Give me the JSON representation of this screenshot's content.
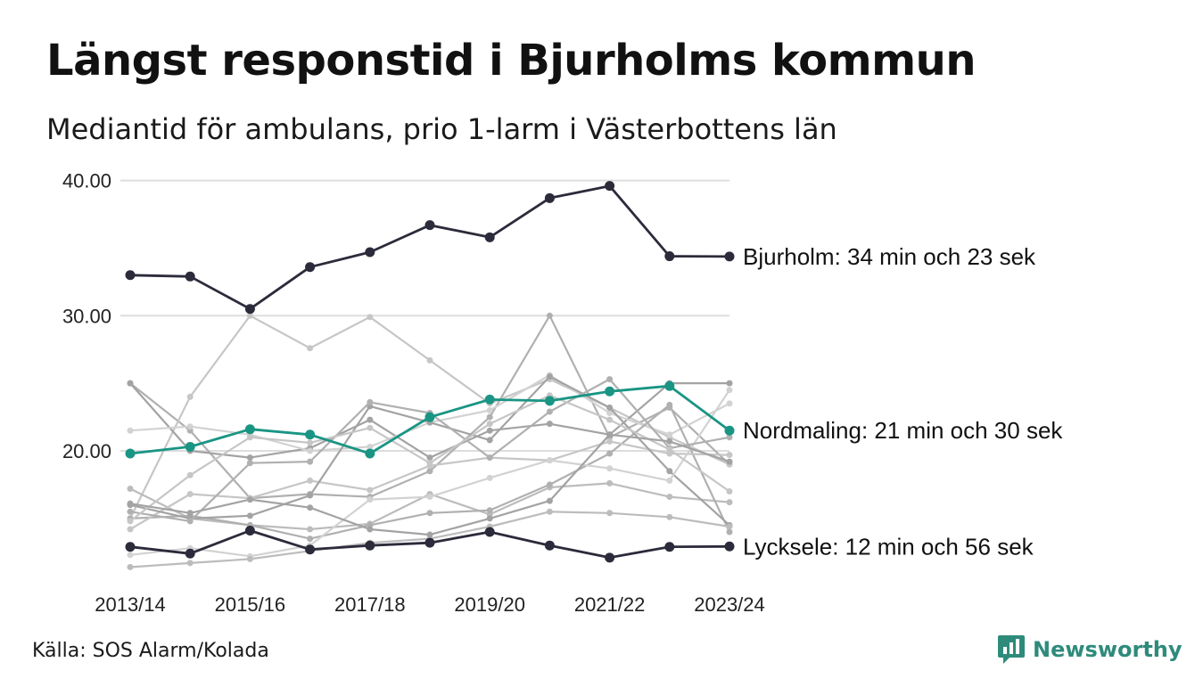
{
  "header": {
    "title": "Längst responstid i Bjurholms kommun",
    "subtitle": "Mediantid för ambulans, prio 1-larm i Västerbottens län"
  },
  "footer": {
    "source": "Källa: SOS Alarm/Kolada",
    "brand": "Newsworthy",
    "brand_icon": "newsworthy-logo-icon"
  },
  "colors": {
    "highlight_dark": "#2b2b3b",
    "highlight_teal": "#1a9584",
    "background_lines": [
      "#b0b0b0",
      "#c6c6c6",
      "#a3a3a3",
      "#d2d2d2",
      "#bcbcbc"
    ],
    "grid": "#dddddd",
    "brand": "#2e8b7c"
  },
  "chart_data": {
    "type": "line",
    "x": [
      "2013/14",
      "2014/15",
      "2015/16",
      "2016/17",
      "2017/18",
      "2018/19",
      "2019/20",
      "2020/21",
      "2021/22",
      "2022/23",
      "2023/24"
    ],
    "x_tick_labels": [
      "2013/14",
      "2015/16",
      "2017/18",
      "2019/20",
      "2021/22",
      "2023/24"
    ],
    "y_ticks": [
      20,
      30,
      40
    ],
    "y_tick_labels": [
      "20.00",
      "30.00",
      "40.00"
    ],
    "ylim": [
      11,
      41
    ],
    "grid": true,
    "highlighted_series": [
      {
        "name": "Bjurholm",
        "label": "Bjurholm: 34 min och 23 sek",
        "color": "#2b2b3b",
        "values": [
          33.0,
          32.9,
          30.5,
          33.6,
          34.7,
          36.7,
          35.8,
          38.7,
          39.6,
          34.4,
          34.38
        ]
      },
      {
        "name": "Nordmaling",
        "label": "Nordmaling: 21 min och 30 sek",
        "color": "#1a9584",
        "values": [
          19.8,
          20.3,
          21.6,
          21.2,
          19.8,
          22.5,
          23.8,
          23.7,
          24.4,
          24.8,
          21.5
        ]
      },
      {
        "name": "Lycksele",
        "label": "Lycksele: 12 min och 56 sek",
        "color": "#2b2b3b",
        "values": [
          12.9,
          12.4,
          14.1,
          12.7,
          13.0,
          13.2,
          14.0,
          13.0,
          12.1,
          12.9,
          12.93
        ]
      }
    ],
    "background_series": [
      {
        "values": [
          25.0,
          21.5,
          16.5,
          16.8,
          16.6,
          18.5,
          22.5,
          30.0,
          21.0,
          23.2,
          19.0
        ]
      },
      {
        "values": [
          15.0,
          24.0,
          30.0,
          27.6,
          29.9,
          26.7,
          23.5,
          25.3,
          23.2,
          21.0,
          19.0
        ]
      },
      {
        "values": [
          25.0,
          20.0,
          19.5,
          20.2,
          22.3,
          19.5,
          21.5,
          22.0,
          21.2,
          25.0,
          25.0
        ]
      },
      {
        "values": [
          21.5,
          21.8,
          21.2,
          20.0,
          20.3,
          22.1,
          23.0,
          25.6,
          22.8,
          21.2,
          23.5
        ]
      },
      {
        "values": [
          17.2,
          15.0,
          14.5,
          14.2,
          14.6,
          16.8,
          15.3,
          17.3,
          17.6,
          16.6,
          16.2
        ]
      },
      {
        "values": [
          15.0,
          15.2,
          14.5,
          13.5,
          14.5,
          15.4,
          15.6,
          17.5,
          19.8,
          23.4,
          14.0
        ]
      },
      {
        "values": [
          14.2,
          16.8,
          16.5,
          17.8,
          17.1,
          18.9,
          19.5,
          19.3,
          20.7,
          19.8,
          19.7
        ]
      },
      {
        "values": [
          16.0,
          15.0,
          15.2,
          16.7,
          23.3,
          22.1,
          20.8,
          25.5,
          23.2,
          18.5,
          14.5
        ]
      },
      {
        "values": [
          12.3,
          12.8,
          12.2,
          13.0,
          16.4,
          16.6,
          18.0,
          19.3,
          18.7,
          17.8,
          24.5
        ]
      },
      {
        "values": [
          11.4,
          11.7,
          12.0,
          12.6,
          13.2,
          13.5,
          14.4,
          15.5,
          15.4,
          15.1,
          14.4
        ]
      },
      {
        "values": [
          15.5,
          14.8,
          19.1,
          19.2,
          23.6,
          22.8,
          19.5,
          22.9,
          25.3,
          20.2,
          21.0
        ]
      },
      {
        "values": [
          14.8,
          18.2,
          21.0,
          20.6,
          21.7,
          19.1,
          22.0,
          24.1,
          22.3,
          20.1,
          17.0
        ]
      },
      {
        "values": [
          16.1,
          15.4,
          16.4,
          15.8,
          14.2,
          13.8,
          15.0,
          16.3,
          21.2,
          20.7,
          19.2
        ]
      }
    ]
  }
}
